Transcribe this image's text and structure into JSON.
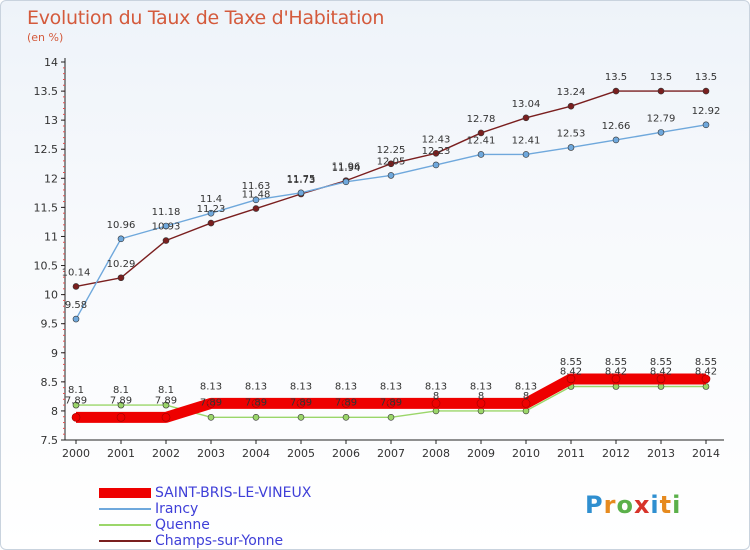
{
  "header": {
    "title": "Evolution du Taux de Taxe d'Habitation",
    "subtitle": "(en %)"
  },
  "brand": {
    "logo_text": "Proxiti"
  },
  "chart_data": {
    "type": "line",
    "title": "Evolution du Taux de Taxe d'Habitation",
    "subtitle": "(en %)",
    "xlabel": "",
    "ylabel": "",
    "x": [
      2000,
      2001,
      2002,
      2003,
      2004,
      2005,
      2006,
      2007,
      2008,
      2009,
      2010,
      2011,
      2012,
      2013,
      2014
    ],
    "ylim": [
      7.5,
      14
    ],
    "y_ticks": [
      7.5,
      8,
      8.5,
      9,
      9.5,
      10,
      10.5,
      11,
      11.5,
      12,
      12.5,
      13,
      13.5,
      14
    ],
    "grid": false,
    "legend_position": "bottom-left",
    "series": [
      {
        "name": "SAINT-BRIS-LE-VINEUX",
        "color": "#ee0000",
        "values": [
          7.89,
          7.89,
          7.89,
          8.13,
          8.13,
          8.13,
          8.13,
          8.13,
          8.13,
          8.13,
          8.13,
          8.55,
          8.55,
          8.55,
          8.55
        ],
        "labels": [
          "7.89",
          "7.89",
          "7.89",
          "8.13",
          "8.13",
          "8.13",
          "8.13",
          "8.13",
          "8.13",
          "8.13",
          "8.13",
          "8.55",
          "8.55",
          "8.55",
          "8.55"
        ]
      },
      {
        "name": "Irancy",
        "color": "#6fa8dc",
        "values": [
          9.58,
          10.96,
          11.18,
          11.4,
          11.63,
          11.75,
          11.94,
          12.05,
          12.23,
          12.41,
          12.41,
          12.53,
          12.66,
          12.79,
          12.92
        ],
        "labels": [
          "9.58",
          "10.96",
          "11.18",
          "11.4",
          "11.63",
          "11.75",
          "11.94",
          "12.05",
          "12.23",
          "12.41",
          "12.41",
          "12.53",
          "12.66",
          "12.79",
          "12.92"
        ]
      },
      {
        "name": "Quenne",
        "color": "#9bd66a",
        "values": [
          8.1,
          8.1,
          8.1,
          7.89,
          7.89,
          7.89,
          7.89,
          7.89,
          8,
          8,
          8,
          8.42,
          8.42,
          8.42,
          8.42
        ],
        "labels": [
          "8.1",
          "8.1",
          "8.1",
          "7.89",
          "7.89",
          "7.89",
          "7.89",
          "7.89",
          "8",
          "8",
          "8",
          "8.42",
          "8.42",
          "8.42",
          "8.42"
        ]
      },
      {
        "name": "Champs-sur-Yonne",
        "color": "#7a1f1f",
        "values": [
          10.14,
          10.29,
          10.93,
          11.23,
          11.48,
          11.73,
          11.96,
          12.25,
          12.43,
          12.78,
          13.04,
          13.24,
          13.5,
          13.5,
          13.5
        ],
        "labels": [
          "10.14",
          "10.29",
          "10.93",
          "11.23",
          "11.48",
          "11.73",
          "11.96",
          "12.25",
          "12.43",
          "12.78",
          "13.04",
          "13.24",
          "13.5",
          "13.5",
          "13.5"
        ]
      }
    ]
  }
}
